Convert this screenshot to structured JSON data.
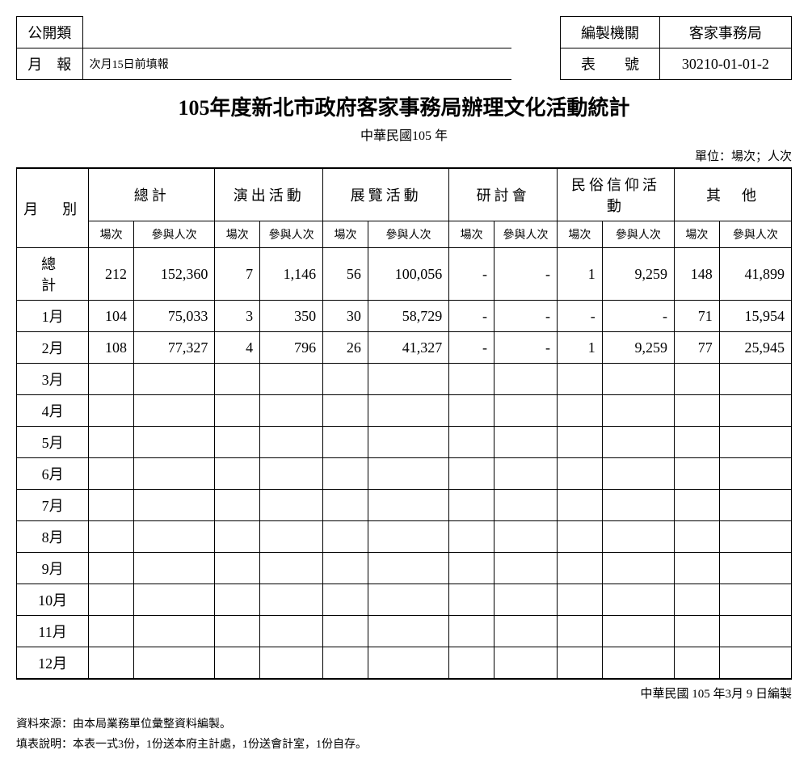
{
  "header": {
    "category_label": "公開類",
    "report_type_label": "月　報",
    "report_note": "次月15日前填報",
    "agency_label": "編製機關",
    "agency_value": "客家事務局",
    "form_no_label": "表　　號",
    "form_no_value": "30210-01-01-2"
  },
  "title": "105年度新北市政府客家事務局辦理文化活動統計",
  "subtitle": "中華民國105 年",
  "unit": "單位：場次；人次",
  "columns": {
    "month_label": "月　別",
    "groups": [
      "總計",
      "演出活動",
      "展覽活動",
      "研討會",
      "民俗信仰活動",
      "其　他"
    ],
    "sub_a": "場次",
    "sub_b": "參與人次"
  },
  "rows": [
    {
      "label": "總　計",
      "vals": [
        "212",
        "152,360",
        "7",
        "1,146",
        "56",
        "100,056",
        "-",
        "-",
        "1",
        "9,259",
        "148",
        "41,899"
      ]
    },
    {
      "label": "1月",
      "vals": [
        "104",
        "75,033",
        "3",
        "350",
        "30",
        "58,729",
        "-",
        "-",
        "-",
        "-",
        "71",
        "15,954"
      ]
    },
    {
      "label": "2月",
      "vals": [
        "108",
        "77,327",
        "4",
        "796",
        "26",
        "41,327",
        "-",
        "-",
        "1",
        "9,259",
        "77",
        "25,945"
      ]
    },
    {
      "label": "3月",
      "vals": [
        "",
        "",
        "",
        "",
        "",
        "",
        "",
        "",
        "",
        "",
        "",
        ""
      ]
    },
    {
      "label": "4月",
      "vals": [
        "",
        "",
        "",
        "",
        "",
        "",
        "",
        "",
        "",
        "",
        "",
        ""
      ]
    },
    {
      "label": "5月",
      "vals": [
        "",
        "",
        "",
        "",
        "",
        "",
        "",
        "",
        "",
        "",
        "",
        ""
      ]
    },
    {
      "label": "6月",
      "vals": [
        "",
        "",
        "",
        "",
        "",
        "",
        "",
        "",
        "",
        "",
        "",
        ""
      ]
    },
    {
      "label": "7月",
      "vals": [
        "",
        "",
        "",
        "",
        "",
        "",
        "",
        "",
        "",
        "",
        "",
        ""
      ]
    },
    {
      "label": "8月",
      "vals": [
        "",
        "",
        "",
        "",
        "",
        "",
        "",
        "",
        "",
        "",
        "",
        ""
      ]
    },
    {
      "label": "9月",
      "vals": [
        "",
        "",
        "",
        "",
        "",
        "",
        "",
        "",
        "",
        "",
        "",
        ""
      ]
    },
    {
      "label": "10月",
      "vals": [
        "",
        "",
        "",
        "",
        "",
        "",
        "",
        "",
        "",
        "",
        "",
        ""
      ]
    },
    {
      "label": "11月",
      "vals": [
        "",
        "",
        "",
        "",
        "",
        "",
        "",
        "",
        "",
        "",
        "",
        ""
      ]
    },
    {
      "label": "12月",
      "vals": [
        "",
        "",
        "",
        "",
        "",
        "",
        "",
        "",
        "",
        "",
        "",
        ""
      ]
    }
  ],
  "footer_date": "中華民國 105 年3月 9 日編製",
  "notes": {
    "source": "資料來源：由本局業務單位彙整資料編製。",
    "instruction": "填表說明：本表一式3份，1份送本府主計處，1份送會計室，1份自存。"
  },
  "col_widths": [
    "80",
    "50",
    "90",
    "50",
    "70",
    "50",
    "90",
    "50",
    "70",
    "50",
    "80",
    "50",
    "80"
  ]
}
